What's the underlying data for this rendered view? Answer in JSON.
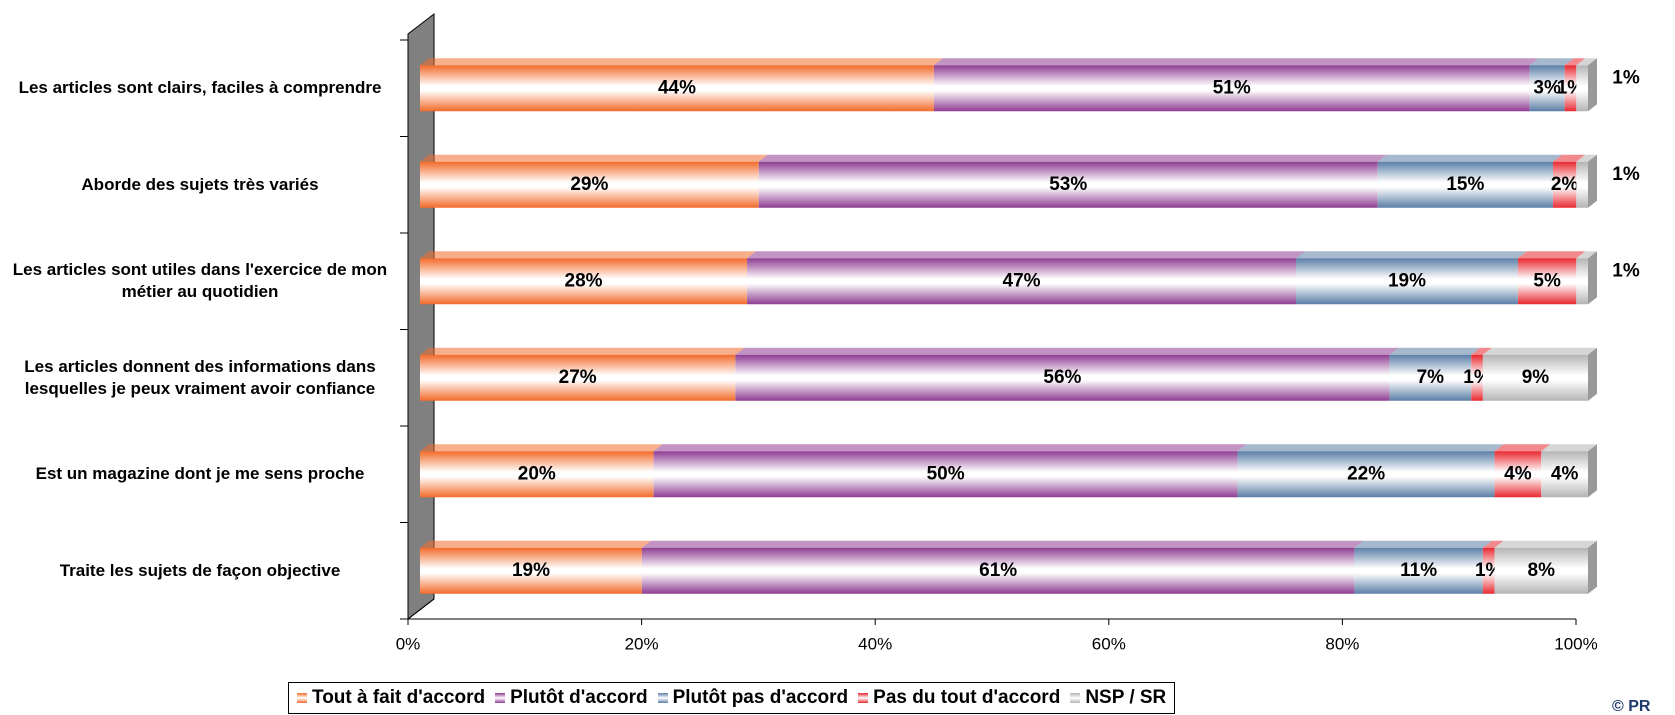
{
  "chart_data": {
    "type": "stacked-bar-horizontal",
    "categories": [
      "Les articles sont clairs, faciles à comprendre",
      "Aborde des sujets très variés",
      "Les articles sont utiles dans l'exercice de mon métier au quotidien",
      "Les articles donnent des informations dans lesquelles je peux vraiment avoir confiance",
      "Est un magazine dont je me sens proche",
      "Traite les sujets de façon objective"
    ],
    "series": [
      {
        "name": "Tout à fait d'accord",
        "color": "#f26b2a",
        "values": [
          44,
          29,
          28,
          27,
          20,
          19
        ],
        "value_labels": [
          "44%",
          "29%",
          "28%",
          "27%",
          "20%",
          "19%"
        ]
      },
      {
        "name": "Plutôt d'accord",
        "color": "#8e3c92",
        "values": [
          51,
          53,
          47,
          56,
          50,
          61
        ],
        "value_labels": [
          "51%",
          "53%",
          "47%",
          "56%",
          "50%",
          "61%"
        ]
      },
      {
        "name": "Plutôt pas d'accord",
        "color": "#5b7ea6",
        "values": [
          3,
          15,
          19,
          7,
          22,
          11
        ],
        "value_labels": [
          "3%",
          "15%",
          "19%",
          "7%",
          "22%",
          "11%"
        ]
      },
      {
        "name": "Pas du tout d'accord",
        "color": "#e8282f",
        "values": [
          1,
          2,
          5,
          1,
          4,
          1
        ],
        "value_labels": [
          "1%",
          "2%",
          "5%",
          "1%",
          "4%",
          "1%"
        ]
      },
      {
        "name": "NSP / SR",
        "color": "#b4b4b4",
        "values": [
          1,
          1,
          1,
          9,
          4,
          8
        ],
        "value_labels": [
          "1%",
          "1%",
          "1%",
          "9%",
          "4%",
          "8%"
        ]
      }
    ],
    "xlim": [
      0,
      100
    ],
    "xticks": [
      {
        "value": 0,
        "label": "0%"
      },
      {
        "value": 20,
        "label": "20%"
      },
      {
        "value": 40,
        "label": "40%"
      },
      {
        "value": 60,
        "label": "60%"
      },
      {
        "value": 80,
        "label": "80%"
      },
      {
        "value": 100,
        "label": "100%"
      }
    ],
    "legend": "bottom",
    "copyright": "© PR"
  }
}
